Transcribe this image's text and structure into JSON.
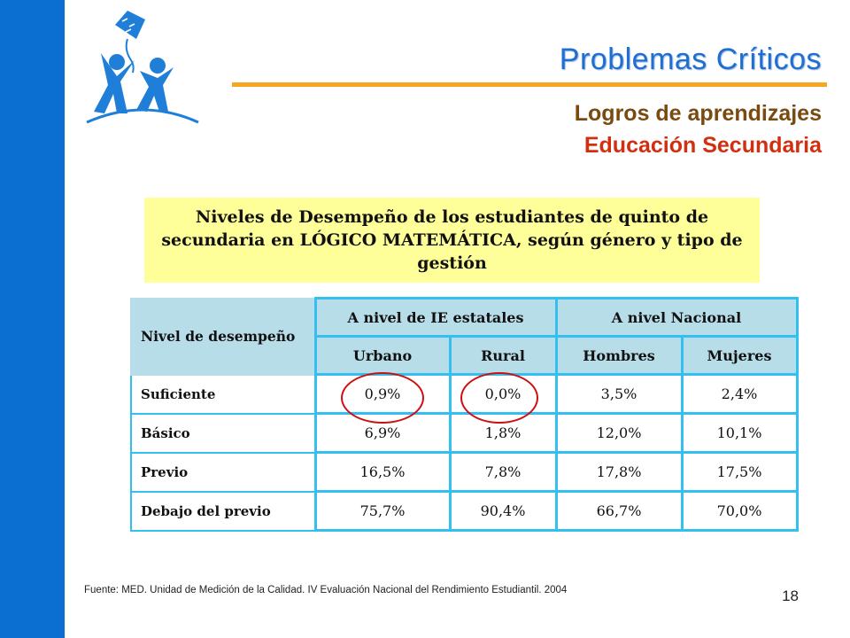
{
  "slide": {
    "title": "Problemas Críticos",
    "subtitle1": "Logros de aprendizajes",
    "subtitle2": "Educación Secundaria",
    "caption": "Niveles de Desempeño de los estudiantes de quinto de secundaria en LÓGICO MATEMÁTICA, según género y tipo de gestión",
    "source": "Fuente: MED. Unidad de Medición de la Calidad. IV Evaluación Nacional del Rendimiento Estudiantil. 2004",
    "page_number": "18",
    "colors": {
      "sidebar": "#0a6fd0",
      "title": "#1f6fd1",
      "accent_line": "#f5a623",
      "subtitle1": "#7a4a10",
      "subtitle2": "#d22f10",
      "caption_bg": "#ffff99",
      "table_header_bg": "#b7dde8",
      "table_border": "#33bff0",
      "highlight_circle": "#cc1010"
    },
    "logo_icon": "children-kite-logo-icon"
  },
  "table": {
    "corner_header": "Nivel de desempeño",
    "group_headers": [
      "A nivel de IE estatales",
      "A nivel Nacional"
    ],
    "columns": [
      "Urbano",
      "Rural",
      "Hombres",
      "Mujeres"
    ],
    "rows": [
      {
        "label": "Suficiente",
        "values": [
          "0,9%",
          "0,0%",
          "3,5%",
          "2,4%"
        ]
      },
      {
        "label": "Básico",
        "values": [
          "6,9%",
          "1,8%",
          "12,0%",
          "10,1%"
        ]
      },
      {
        "label": "Previo",
        "values": [
          "16,5%",
          "7,8%",
          "17,8%",
          "17,5%"
        ]
      },
      {
        "label": "Debajo del previo",
        "values": [
          "75,7%",
          "90,4%",
          "66,7%",
          "70,0%"
        ]
      }
    ]
  }
}
